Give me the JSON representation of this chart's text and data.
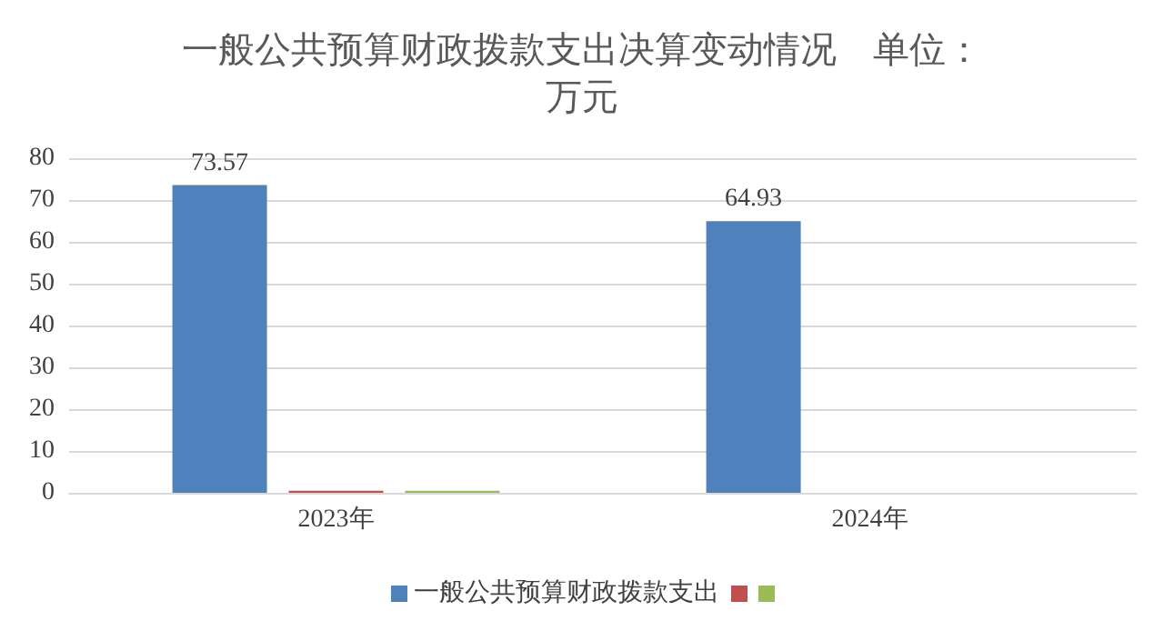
{
  "chart_data": {
    "type": "bar",
    "title": "一般公共预算财政拨款支出决算变动情况　单位：万元",
    "categories": [
      "2023年",
      "2024年"
    ],
    "series": [
      {
        "name": "一般公共预算财政拨款支出",
        "color": "#4f81bd",
        "values": [
          73.57,
          64.93
        ],
        "value_labels": [
          "73.57",
          "64.93"
        ]
      },
      {
        "color": "#c0504d",
        "values": [
          0.5,
          0
        ]
      },
      {
        "color": "#9bbb59",
        "values": [
          0.5,
          0
        ]
      }
    ],
    "ylim": [
      0,
      80
    ],
    "yticks": [
      0,
      10,
      20,
      30,
      40,
      50,
      60,
      70,
      80
    ],
    "grid": "y",
    "legend": "bottom"
  }
}
